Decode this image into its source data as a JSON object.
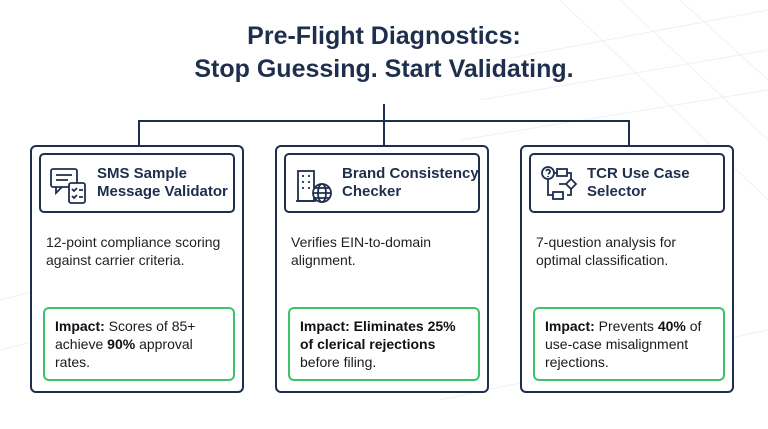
{
  "header": {
    "title_lines": [
      "Pre-Flight Diagnostics:",
      "Stop Guessing. Start Validating."
    ]
  },
  "cards": [
    {
      "title_lines": [
        "SMS Sample",
        "Message Validator"
      ],
      "description": "12-point compliance scoring against carrier criteria.",
      "impact": [
        {
          "text": "Impact:",
          "bold": true
        },
        {
          "text": " Scores of 85+ achieve ",
          "bold": false
        },
        {
          "text": "90%",
          "bold": true
        },
        {
          "text": " approval rates.",
          "bold": false
        }
      ]
    },
    {
      "title_lines": [
        "Brand Consistency",
        "Checker"
      ],
      "description": "Verifies EIN-to-domain alignment.",
      "impact": [
        {
          "text": "Impact: Eliminates 25% of clerical rejections",
          "bold": true
        },
        {
          "text": " before filing.",
          "bold": false
        }
      ]
    },
    {
      "title_lines": [
        "TCR Use Case",
        "Selector"
      ],
      "description": "7-question analysis for optimal classification.",
      "impact": [
        {
          "text": "Impact:",
          "bold": true
        },
        {
          "text": " Prevents ",
          "bold": false
        },
        {
          "text": "40%",
          "bold": true
        },
        {
          "text": " of use-case misalignment rejections.",
          "bold": false
        }
      ]
    }
  ]
}
